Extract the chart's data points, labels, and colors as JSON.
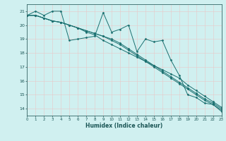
{
  "xlabel": "Humidex (Indice chaleur)",
  "bg_color": "#d0f0f0",
  "grid_color": "#c0e8e8",
  "line_color": "#1a7070",
  "xlim": [
    0,
    23
  ],
  "ylim": [
    13.5,
    21.5
  ],
  "yticks": [
    14,
    15,
    16,
    17,
    18,
    19,
    20,
    21
  ],
  "xticks": [
    0,
    1,
    2,
    3,
    4,
    5,
    6,
    7,
    8,
    9,
    10,
    11,
    12,
    13,
    14,
    15,
    16,
    17,
    18,
    19,
    20,
    21,
    22,
    23
  ],
  "series": [
    [
      20.7,
      21.0,
      20.7,
      21.0,
      21.0,
      18.9,
      19.0,
      19.1,
      19.2,
      20.9,
      19.5,
      19.7,
      20.0,
      18.1,
      19.0,
      18.8,
      18.9,
      17.5,
      16.4,
      15.0,
      14.8,
      14.4,
      14.3,
      13.8
    ],
    [
      20.7,
      20.7,
      20.5,
      20.3,
      20.2,
      20.0,
      19.8,
      19.5,
      19.3,
      18.9,
      18.6,
      18.3,
      18.0,
      17.7,
      17.4,
      17.1,
      16.8,
      16.5,
      16.2,
      15.7,
      15.3,
      14.9,
      14.5,
      14.1
    ],
    [
      20.7,
      20.7,
      20.5,
      20.3,
      20.2,
      20.0,
      19.8,
      19.6,
      19.4,
      19.2,
      18.9,
      18.6,
      18.2,
      17.8,
      17.4,
      17.0,
      16.6,
      16.2,
      15.8,
      15.4,
      15.0,
      14.6,
      14.3,
      13.9
    ],
    [
      20.7,
      20.7,
      20.5,
      20.3,
      20.2,
      20.0,
      19.8,
      19.6,
      19.4,
      19.2,
      19.0,
      18.7,
      18.3,
      17.9,
      17.5,
      17.1,
      16.7,
      16.3,
      15.9,
      15.5,
      15.1,
      14.7,
      14.4,
      14.0
    ]
  ]
}
